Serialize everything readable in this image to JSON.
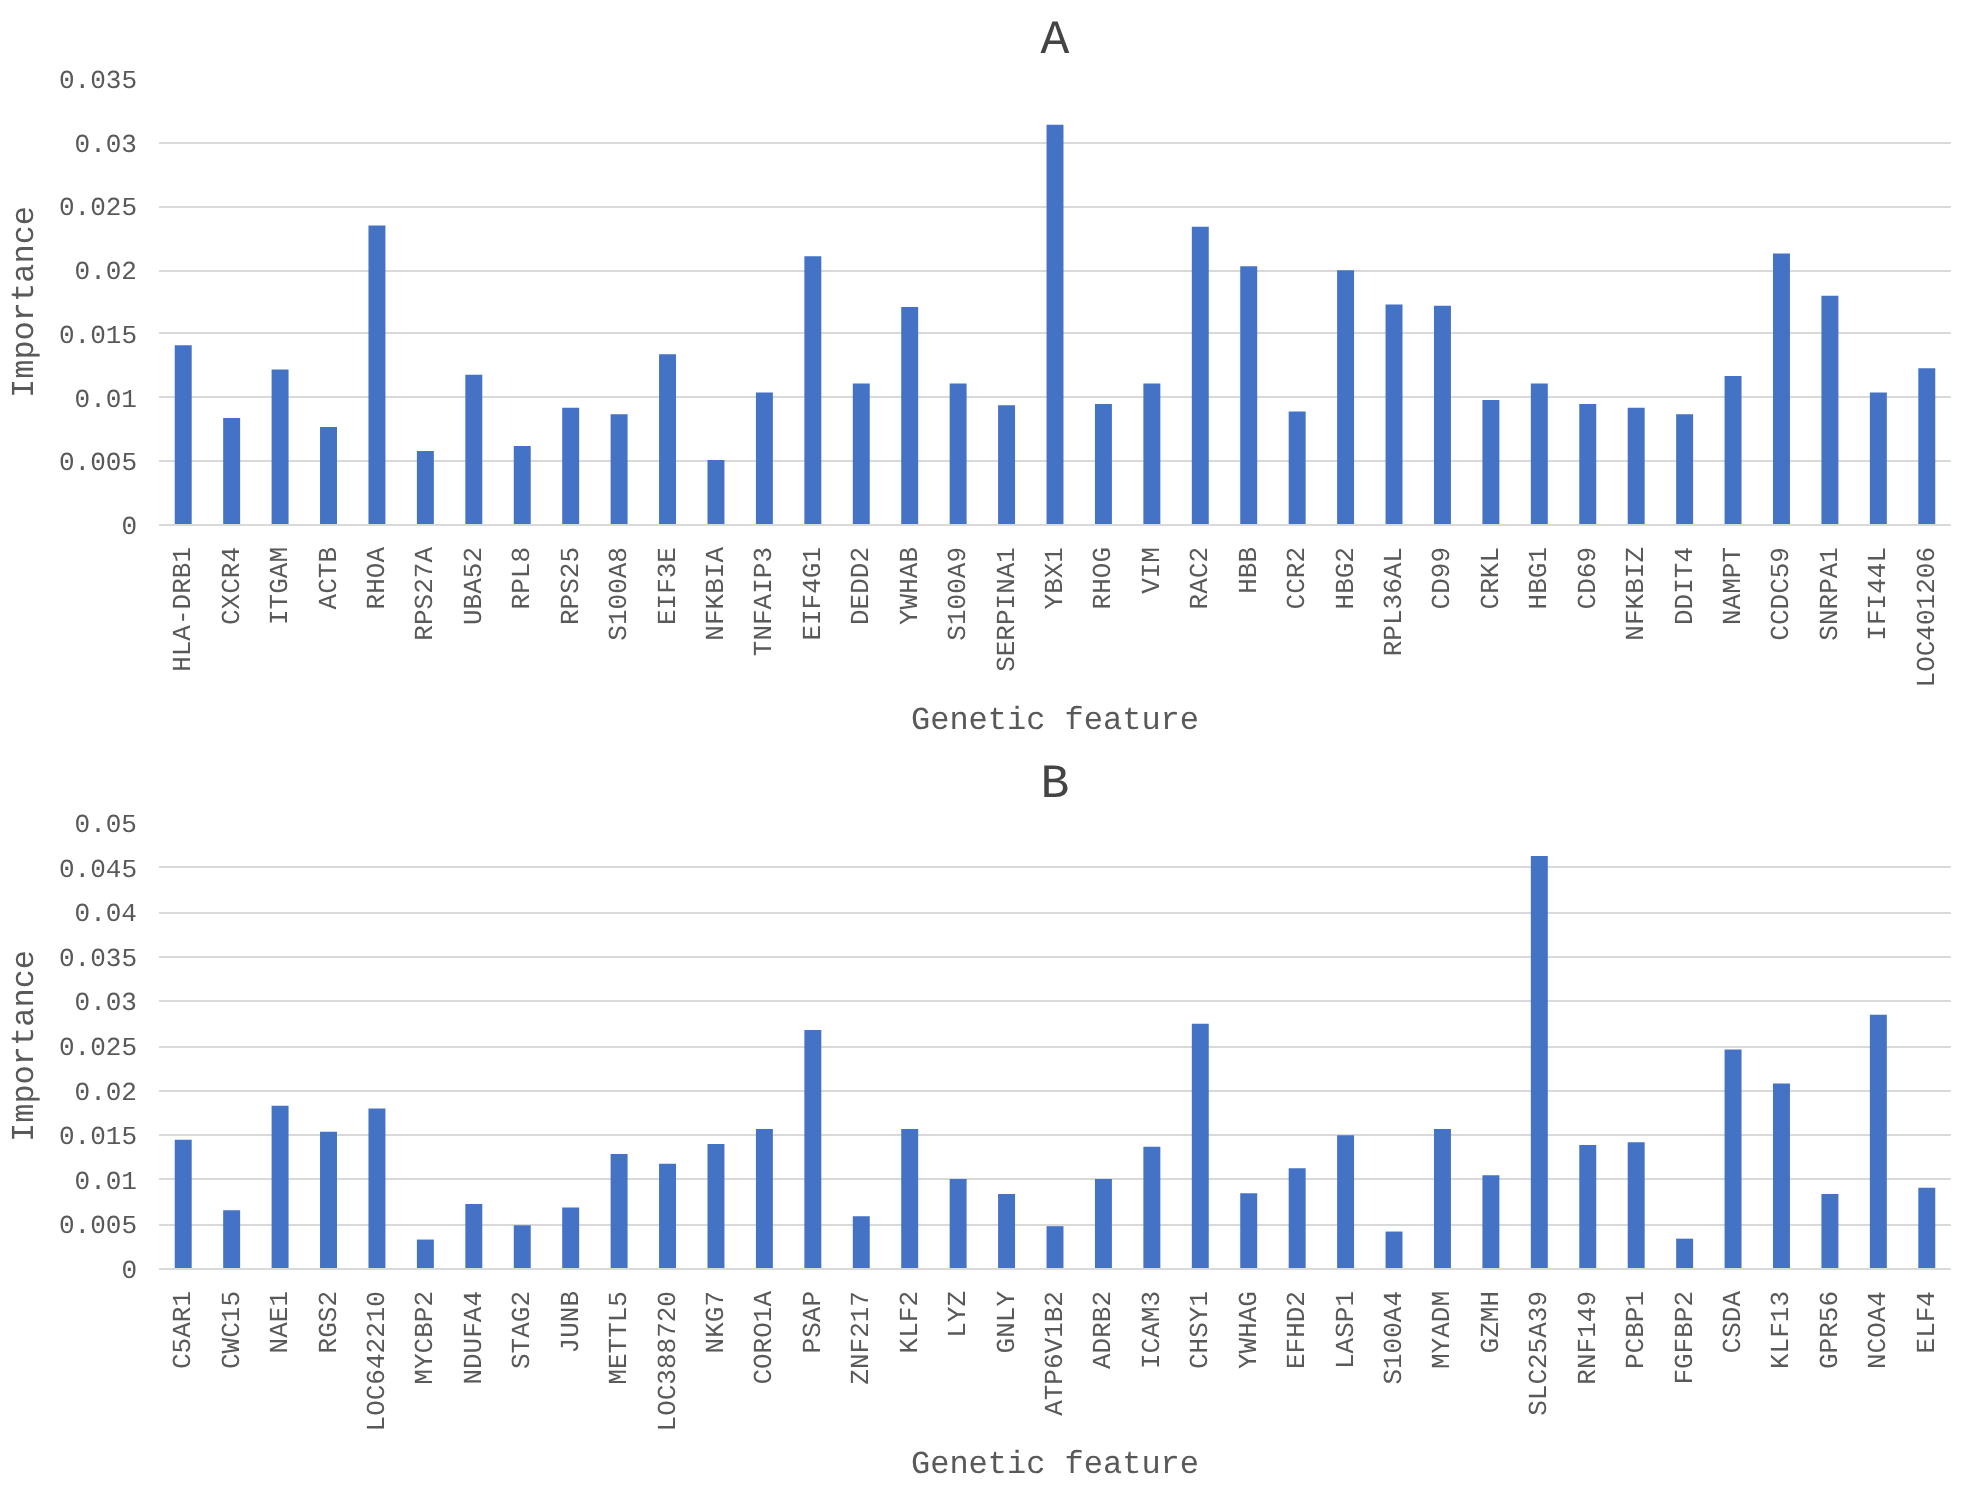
{
  "chart_data": [
    {
      "type": "bar",
      "title": "A",
      "xlabel": "Genetic feature",
      "ylabel": "Importance",
      "grid": "y",
      "legend": false,
      "categories": [
        "HLA-DRB1",
        "CXCR4",
        "ITGAM",
        "ACTB",
        "RHOA",
        "RPS27A",
        "UBA52",
        "RPL8",
        "RPS25",
        "S100A8",
        "EIF3E",
        "NFKBIA",
        "TNFAIP3",
        "EIF4G1",
        "DEDD2",
        "YWHAB",
        "S100A9",
        "SERPINA1",
        "YBX1",
        "RHOG",
        "VIM",
        "RAC2",
        "HBB",
        "CCR2",
        "HBG2",
        "RPL36AL",
        "CD99",
        "CRKL",
        "HBG1",
        "CD69",
        "NFKBIZ",
        "DDIT4",
        "NAMPT",
        "CCDC59",
        "SNRPA1",
        "IFI44L",
        "LOC401206"
      ],
      "values": [
        0.0141,
        0.0084,
        0.0122,
        0.0077,
        0.0235,
        0.0058,
        0.0118,
        0.0062,
        0.0092,
        0.0087,
        0.0134,
        0.0051,
        0.0104,
        0.0211,
        0.0111,
        0.0171,
        0.0111,
        0.0094,
        0.0314,
        0.0095,
        0.0111,
        0.0234,
        0.0203,
        0.0089,
        0.02,
        0.0173,
        0.0172,
        0.0098,
        0.0111,
        0.0095,
        0.0092,
        0.0087,
        0.0117,
        0.0213,
        0.018,
        0.0104,
        0.0123
      ],
      "color": "#4472c4",
      "ylim": [
        0,
        0.035
      ],
      "yticks": [
        0,
        0.005,
        0.01,
        0.015,
        0.02,
        0.025,
        0.03,
        0.035
      ]
    },
    {
      "type": "bar",
      "title": "B",
      "xlabel": "Genetic feature",
      "ylabel": "Importance",
      "grid": "y",
      "legend": false,
      "categories": [
        "C5AR1",
        "CWC15",
        "NAE1",
        "RGS2",
        "LOC642210",
        "MYCBP2",
        "NDUFA4",
        "STAG2",
        "JUNB",
        "METTL5",
        "LOC388720",
        "NKG7",
        "CORO1A",
        "PSAP",
        "ZNF217",
        "KLF2",
        "LYZ",
        "GNLY",
        "ATP6V1B2",
        "ADRB2",
        "ICAM3",
        "CHSY1",
        "YWHAG",
        "EFHD2",
        "LASP1",
        "S100A4",
        "MYADM",
        "GZMH",
        "SLC25A39",
        "RNF149",
        "PCBP1",
        "FGFBP2",
        "CSDA",
        "KLF13",
        "GPR56",
        "NCOA4",
        "ELF4"
      ],
      "values": [
        0.0145,
        0.0066,
        0.0183,
        0.0154,
        0.018,
        0.0033,
        0.0073,
        0.0049,
        0.0069,
        0.0129,
        0.0118,
        0.014,
        0.0157,
        0.0268,
        0.0059,
        0.0157,
        0.0101,
        0.0084,
        0.0048,
        0.0101,
        0.0137,
        0.0275,
        0.0085,
        0.0113,
        0.015,
        0.0042,
        0.0157,
        0.0105,
        0.0463,
        0.0139,
        0.0142,
        0.0034,
        0.0246,
        0.0208,
        0.0084,
        0.0285,
        0.0091
      ],
      "color": "#4472c4",
      "ylim": [
        0,
        0.05
      ],
      "yticks": [
        0,
        0.005,
        0.01,
        0.015,
        0.02,
        0.025,
        0.03,
        0.035,
        0.04,
        0.045,
        0.05
      ]
    }
  ]
}
